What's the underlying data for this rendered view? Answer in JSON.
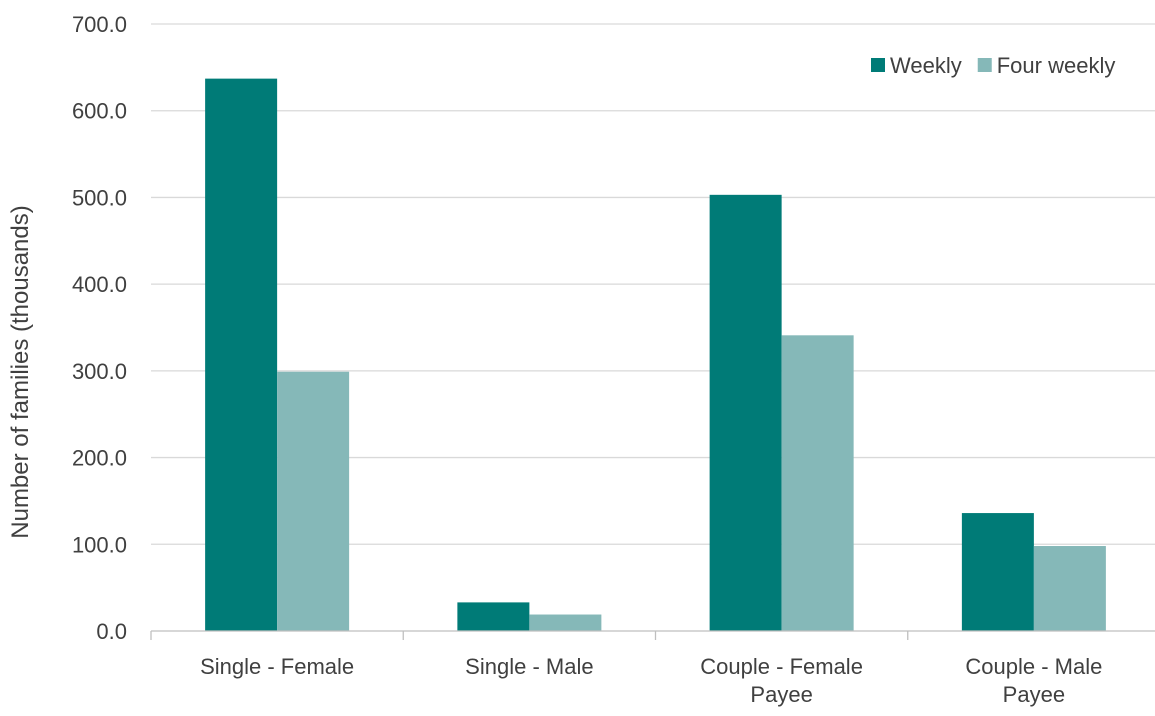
{
  "chart_data": {
    "type": "bar",
    "title": "",
    "xlabel": "",
    "ylabel": "Number of families (thousands)",
    "ylim": [
      0,
      700
    ],
    "yticks": [
      0,
      100,
      200,
      300,
      400,
      500,
      600,
      700
    ],
    "ytick_labels": [
      "0.0",
      "100.0",
      "200.0",
      "300.0",
      "400.0",
      "500.0",
      "600.0",
      "700.0"
    ],
    "categories": [
      [
        "Single - Female"
      ],
      [
        "Single - Male"
      ],
      [
        "Couple - Female",
        "Payee"
      ],
      [
        "Couple - Male",
        "Payee"
      ]
    ],
    "series": [
      {
        "name": "Weekly",
        "color": "#007b77",
        "values": [
          637,
          33,
          503,
          136
        ]
      },
      {
        "name": "Four weekly",
        "color": "#85b8b8",
        "values": [
          299,
          19,
          341,
          98
        ]
      }
    ],
    "grid": true,
    "legend_position": "top-right"
  }
}
